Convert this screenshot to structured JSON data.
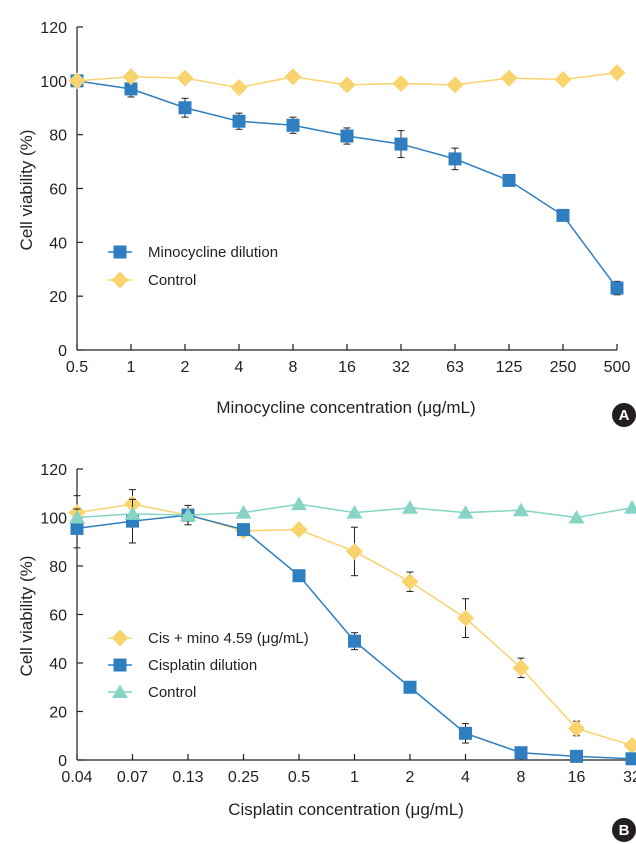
{
  "colors": {
    "blue": "#2f7fc0",
    "yellow": "#f9d36e",
    "teal": "#86d4c6",
    "axis": "#231f20",
    "badge": "#231f20"
  },
  "chart_data": [
    {
      "panel": "A",
      "type": "line",
      "xlabel": "Minocycline concentration (μg/mL)",
      "ylabel": "Cell viability (%)",
      "categories": [
        "0.5",
        "1",
        "2",
        "4",
        "8",
        "16",
        "32",
        "63",
        "125",
        "250",
        "500"
      ],
      "ylim": [
        0,
        120
      ],
      "yticks": [
        0,
        20,
        40,
        60,
        80,
        100,
        120
      ],
      "grid": false,
      "legend_position": "center-left",
      "series": [
        {
          "name": "Minocycline dilution",
          "marker": "square",
          "color": "#2f7fc0",
          "values": [
            100,
            97,
            90,
            85,
            83.5,
            79.5,
            76.5,
            71,
            63,
            50,
            23
          ],
          "errors": [
            0,
            3,
            3.5,
            3,
            3,
            3,
            5,
            4,
            0,
            0,
            2.5
          ]
        },
        {
          "name": "Control",
          "marker": "diamond",
          "color": "#f9d36e",
          "values": [
            100,
            101.5,
            101,
            97.5,
            101.5,
            98.5,
            99,
            98.5,
            101,
            100.5,
            103
          ],
          "errors": [
            0,
            0,
            0,
            0,
            0,
            0,
            0,
            0,
            0,
            0,
            0
          ]
        }
      ]
    },
    {
      "panel": "B",
      "type": "line",
      "xlabel": "Cisplatin concentration (μg/mL)",
      "ylabel": "Cell viability (%)",
      "categories": [
        "0.04",
        "0.07",
        "0.13",
        "0.25",
        "0.5",
        "1",
        "2",
        "4",
        "8",
        "16",
        "32"
      ],
      "ylim": [
        0,
        120
      ],
      "yticks": [
        0,
        20,
        40,
        60,
        80,
        100,
        120
      ],
      "grid": false,
      "legend_position": "lower-left",
      "series": [
        {
          "name": "Cis + mino 4.59 (μg/mL)",
          "marker": "diamond",
          "color": "#f9d36e",
          "values": [
            102,
            105.5,
            101,
            94.5,
            95,
            86,
            73.5,
            58.5,
            38,
            13,
            6
          ],
          "errors": [
            7,
            6,
            0,
            0,
            0,
            10,
            4,
            8,
            4,
            3,
            0
          ]
        },
        {
          "name": "Cisplatin dilution",
          "marker": "square",
          "color": "#2f7fc0",
          "values": [
            95.5,
            98.5,
            101,
            95,
            76,
            49,
            30,
            11,
            3,
            1.5,
            0.5
          ],
          "errors": [
            8,
            9,
            4,
            0,
            0,
            3.5,
            0,
            4,
            0,
            0,
            0
          ]
        },
        {
          "name": "Control",
          "marker": "triangle",
          "color": "#86d4c6",
          "values": [
            100,
            101.5,
            101,
            102,
            105.5,
            102,
            104,
            102,
            103,
            100,
            104
          ],
          "errors": [
            0,
            0,
            0,
            0,
            0,
            0,
            0,
            0,
            0,
            0,
            0
          ]
        }
      ]
    }
  ],
  "panel_labels": [
    "A",
    "B"
  ]
}
